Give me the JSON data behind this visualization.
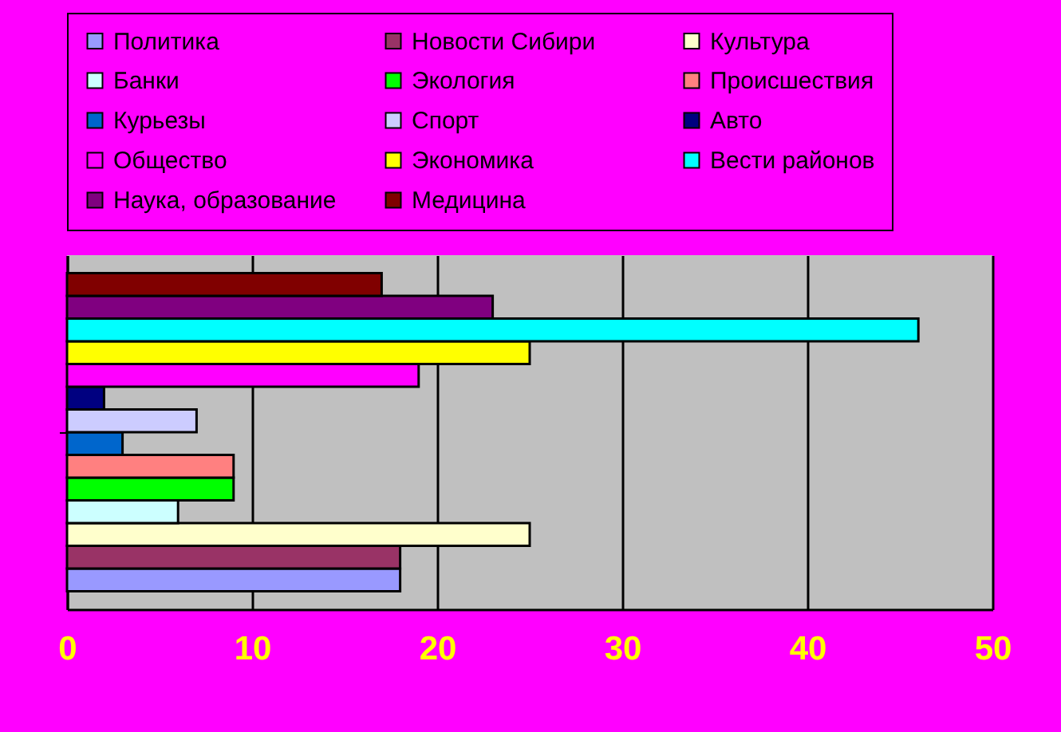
{
  "chart_data": {
    "type": "bar",
    "orientation": "horizontal",
    "categories": [
      null
    ],
    "series": [
      {
        "name": "Политика",
        "color": "#9999ff",
        "values": [
          18
        ]
      },
      {
        "name": "Новости Сибири",
        "color": "#993366",
        "values": [
          18
        ]
      },
      {
        "name": "Культура",
        "color": "#ffffcc",
        "values": [
          25
        ]
      },
      {
        "name": "Банки",
        "color": "#ccffff",
        "values": [
          6
        ]
      },
      {
        "name": "Экология",
        "color": "#00ff00",
        "values": [
          9
        ]
      },
      {
        "name": "Происшествия",
        "color": "#ff8080",
        "values": [
          9
        ]
      },
      {
        "name": "Курьезы",
        "color": "#0066cc",
        "values": [
          3
        ]
      },
      {
        "name": "Спорт",
        "color": "#ccccff",
        "values": [
          7
        ]
      },
      {
        "name": "Авто",
        "color": "#000080",
        "values": [
          2
        ]
      },
      {
        "name": "Общество",
        "color": "#ff00ff",
        "values": [
          19
        ]
      },
      {
        "name": "Экономика",
        "color": "#ffff00",
        "values": [
          25
        ]
      },
      {
        "name": "Вести районов",
        "color": "#00ffff",
        "values": [
          46
        ]
      },
      {
        "name": "Наука, образование",
        "color": "#800080",
        "values": [
          23
        ]
      },
      {
        "name": "Медицина",
        "color": "#800000",
        "values": [
          17
        ]
      }
    ],
    "xlim": [
      0,
      50
    ],
    "xticks": [
      0,
      10,
      20,
      30,
      40,
      50
    ],
    "grid": "x",
    "legend": "top",
    "tick_labels": "x"
  }
}
